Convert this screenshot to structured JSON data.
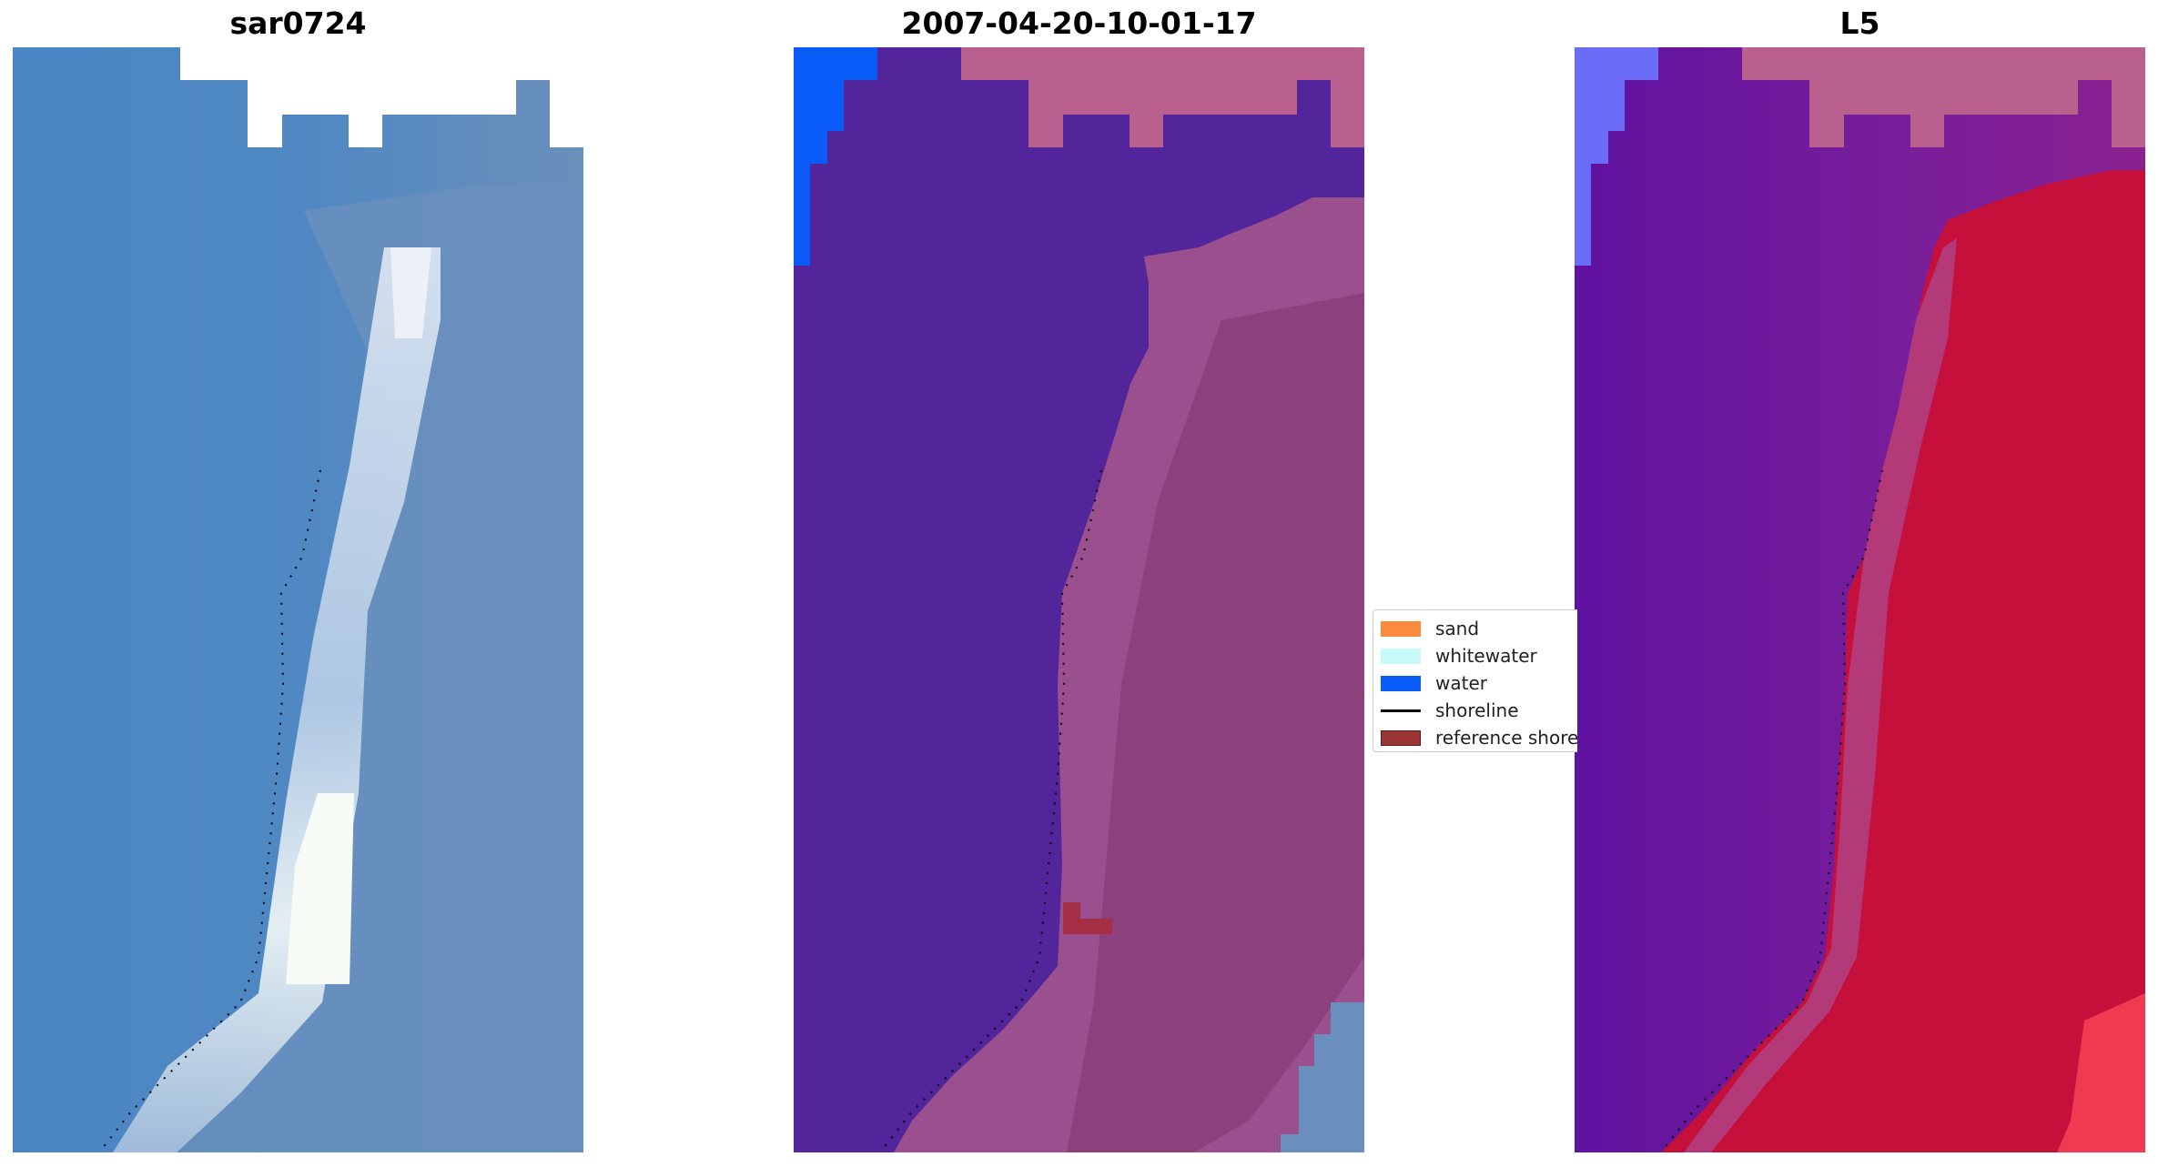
{
  "panels": [
    {
      "title": "sar0724",
      "style": "rgb"
    },
    {
      "title": "2007-04-20-10-01-17",
      "style": "classified"
    },
    {
      "title": "L5",
      "style": "index"
    }
  ],
  "legend": {
    "items": [
      {
        "label": "sand",
        "color": "#fb8a3e",
        "kind": "patch"
      },
      {
        "label": "whitewater",
        "color": "#c8fbf8",
        "kind": "patch"
      },
      {
        "label": "water",
        "color": "#0a5cf8",
        "kind": "patch"
      },
      {
        "label": "shoreline",
        "color": "#000000",
        "kind": "line"
      },
      {
        "label": "reference shoreline",
        "color": "#9b3535",
        "kind": "patch"
      }
    ]
  },
  "colors": {
    "rgb_sea": "#4a82c2",
    "rgb_surf": "#e8f0f4",
    "classified_sea": "#53259a",
    "classified_land": "#9a4f8e",
    "classified_water": "#0a5cf8",
    "classified_nodata": "#b9608f",
    "index_sea": "#6a1fa0",
    "index_land": "#c4103b",
    "index_nodata": "#b9608f",
    "index_water": "#6b6cf8"
  }
}
